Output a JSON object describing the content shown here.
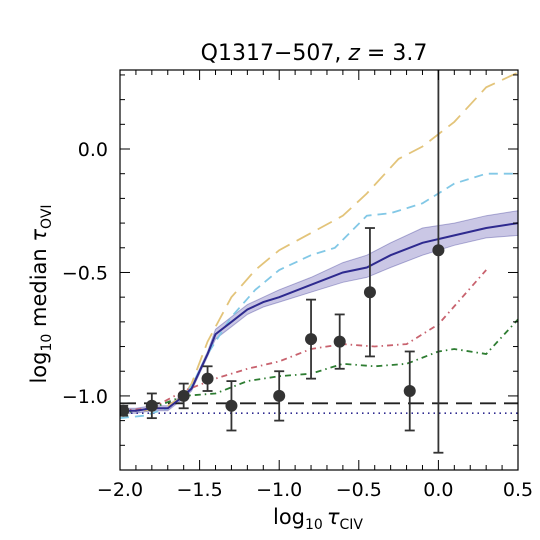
{
  "chart_data": {
    "type": "line",
    "title": {
      "main": "Q1317−507, ",
      "z_symbol": "z",
      "z_value": " = 3.7"
    },
    "xlabel": {
      "prefix": "log",
      "subscript": "10",
      "symbol": "τ",
      "species": "CIV"
    },
    "ylabel": {
      "prefix": "log",
      "subscript": "10",
      "word": " median ",
      "symbol": "τ",
      "species": "OVI"
    },
    "xlim": [
      -2.0,
      0.5
    ],
    "ylim": [
      -1.3,
      0.32
    ],
    "x_ticks": [
      -2.0,
      -1.5,
      -1.0,
      -0.5,
      0.0,
      0.5
    ],
    "x_tick_labels": [
      "−2.0",
      "−1.5",
      "−1.0",
      "−0.5",
      "0.0",
      "0.5"
    ],
    "y_ticks": [
      -1.0,
      -0.5,
      0.0
    ],
    "y_tick_labels": [
      "−1.0",
      "−0.5",
      "0.0"
    ],
    "series": [
      {
        "style": "dashed-long",
        "color": "#e3c47a",
        "x": [
          -2.0,
          -1.85,
          -1.7,
          -1.6,
          -1.55,
          -1.45,
          -1.3,
          -1.15,
          -1.0,
          -0.8,
          -0.6,
          -0.45,
          -0.25,
          -0.1,
          0.1,
          0.3,
          0.5
        ],
        "y": [
          -1.06,
          -1.06,
          -1.04,
          -1.0,
          -0.95,
          -0.78,
          -0.6,
          -0.49,
          -0.41,
          -0.34,
          -0.27,
          -0.18,
          -0.04,
          0.01,
          0.11,
          0.25,
          0.31
        ]
      },
      {
        "style": "dashed",
        "color": "#82c8e6",
        "x": [
          -2.0,
          -1.85,
          -1.7,
          -1.6,
          -1.55,
          -1.45,
          -1.3,
          -1.15,
          -1.0,
          -0.8,
          -0.65,
          -0.45,
          -0.3,
          -0.1,
          0.1,
          0.3,
          0.5
        ],
        "y": [
          -1.09,
          -1.08,
          -1.05,
          -1.0,
          -0.96,
          -0.83,
          -0.68,
          -0.57,
          -0.49,
          -0.43,
          -0.4,
          -0.27,
          -0.26,
          -0.22,
          -0.14,
          -0.1,
          -0.1
        ]
      },
      {
        "style": "dashdot",
        "color": "#c8626e",
        "x": [
          -2.0,
          -1.8,
          -1.6,
          -1.4,
          -1.2,
          -1.0,
          -0.8,
          -0.6,
          -0.4,
          -0.2,
          0.0,
          0.15,
          0.3
        ],
        "y": [
          -1.06,
          -1.05,
          -0.98,
          -0.93,
          -0.89,
          -0.86,
          -0.81,
          -0.79,
          -0.8,
          -0.79,
          -0.71,
          -0.6,
          -0.49
        ]
      },
      {
        "style": "dashdot",
        "color": "#2e7d32",
        "x": [
          -2.0,
          -1.8,
          -1.6,
          -1.4,
          -1.2,
          -1.0,
          -0.8,
          -0.6,
          -0.4,
          -0.2,
          0.0,
          0.1,
          0.3,
          0.5
        ],
        "y": [
          -1.07,
          -1.05,
          -1.0,
          -0.99,
          -0.94,
          -0.92,
          -0.91,
          -0.87,
          -0.88,
          -0.87,
          -0.82,
          -0.81,
          -0.83,
          -0.69
        ]
      },
      {
        "style": "solid",
        "color": "#2e2a8f",
        "band_color": "#b8b4dc",
        "x": [
          -2.0,
          -1.9,
          -1.8,
          -1.7,
          -1.6,
          -1.55,
          -1.5,
          -1.45,
          -1.4,
          -1.3,
          -1.2,
          -1.1,
          -1.0,
          -0.8,
          -0.6,
          -0.45,
          -0.3,
          -0.1,
          0.1,
          0.3,
          0.5
        ],
        "y": [
          -1.06,
          -1.06,
          -1.05,
          -1.05,
          -1.0,
          -0.97,
          -0.9,
          -0.83,
          -0.75,
          -0.7,
          -0.65,
          -0.62,
          -0.6,
          -0.55,
          -0.5,
          -0.48,
          -0.43,
          -0.38,
          -0.35,
          -0.32,
          -0.3
        ],
        "y_low": [
          -1.07,
          -1.07,
          -1.06,
          -1.06,
          -1.01,
          -0.98,
          -0.91,
          -0.84,
          -0.77,
          -0.72,
          -0.67,
          -0.64,
          -0.62,
          -0.58,
          -0.54,
          -0.52,
          -0.48,
          -0.43,
          -0.39,
          -0.36,
          -0.35
        ],
        "y_high": [
          -1.05,
          -1.05,
          -1.04,
          -1.04,
          -0.99,
          -0.96,
          -0.89,
          -0.82,
          -0.73,
          -0.68,
          -0.63,
          -0.6,
          -0.57,
          -0.52,
          -0.46,
          -0.43,
          -0.38,
          -0.32,
          -0.3,
          -0.27,
          -0.25
        ]
      }
    ],
    "hlines": [
      {
        "y": -1.03,
        "style": "dashed-long",
        "color": "#222222"
      },
      {
        "y": -1.07,
        "style": "dotted",
        "color": "#2e2a8f"
      }
    ],
    "points": {
      "color": "#333333",
      "x": [
        -1.98,
        -1.8,
        -1.6,
        -1.45,
        -1.3,
        -1.0,
        -0.8,
        -0.62,
        -0.43,
        -0.18,
        0.0
      ],
      "y": [
        -1.06,
        -1.04,
        -1.0,
        -0.93,
        -1.04,
        -1.0,
        -0.77,
        -0.78,
        -0.58,
        -0.98,
        -0.41
      ],
      "yerr": [
        0.02,
        0.05,
        0.05,
        0.05,
        0.1,
        0.1,
        0.16,
        0.11,
        0.26,
        0.16,
        0.82
      ]
    },
    "grid": false
  }
}
